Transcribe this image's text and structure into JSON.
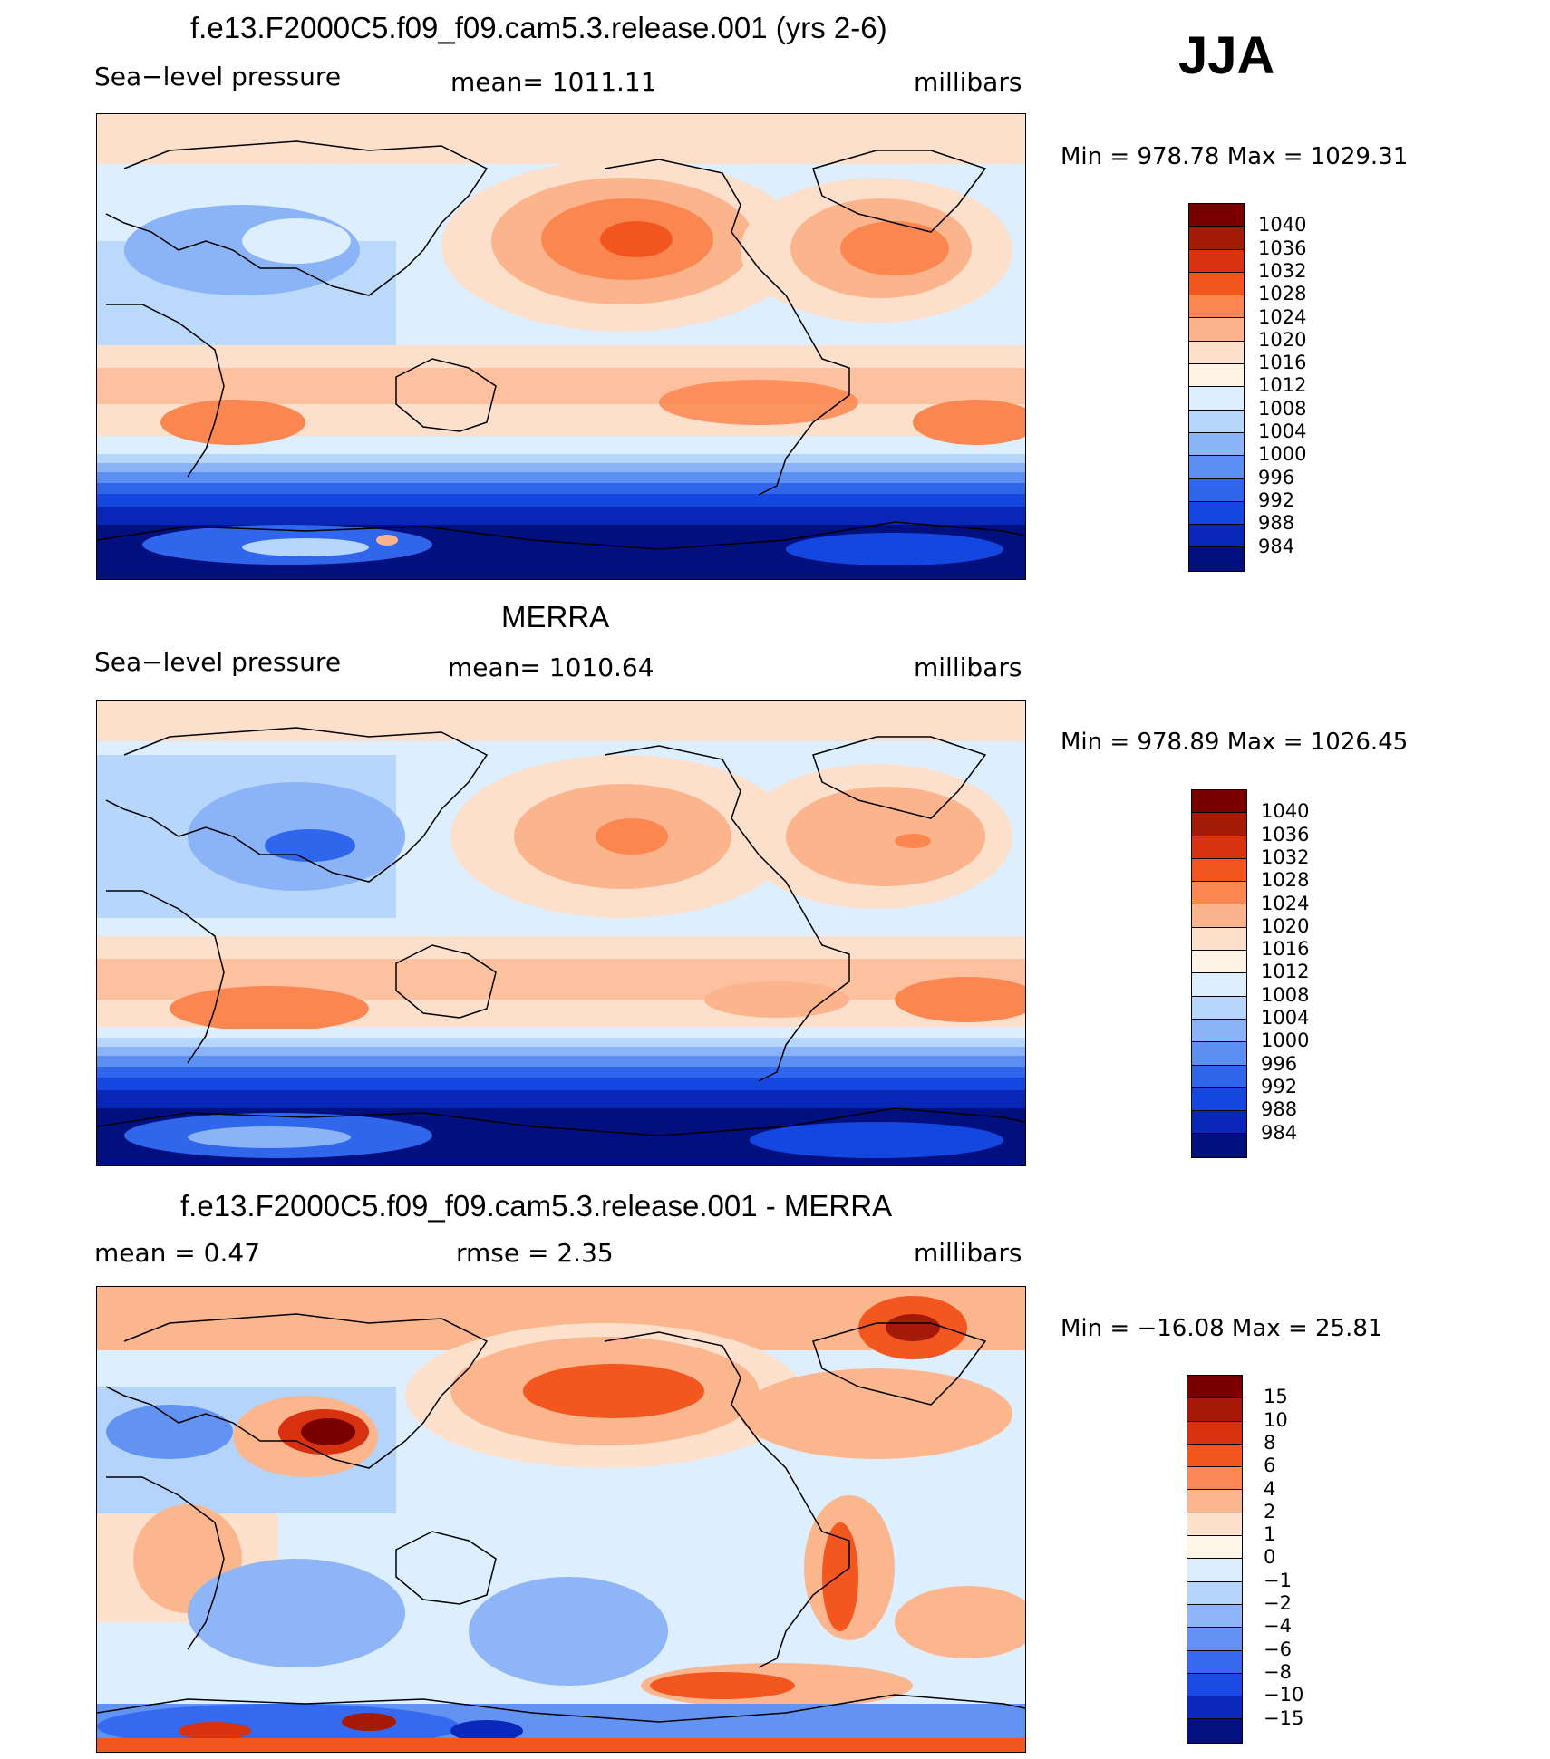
{
  "season": "JJA",
  "palette_abs": [
    "#7a0000",
    "#a31a06",
    "#d93210",
    "#f2561e",
    "#fb8650",
    "#fcb48c",
    "#fde0cb",
    "#fff3e6",
    "#ddeefe",
    "#b7d6fb",
    "#8ab4f7",
    "#5b8ff2",
    "#2f66ec",
    "#1447e0",
    "#0826b8",
    "#01107e"
  ],
  "palette_diff": [
    "#7a0000",
    "#a51a06",
    "#d83110",
    "#f3571f",
    "#fb8856",
    "#fcb68e",
    "#fde1cc",
    "#fff4e8",
    "#dbedfd",
    "#b4d4fb",
    "#8db5f7",
    "#6292f2",
    "#356af0",
    "#1a4ae2",
    "#0a29ba",
    "#02117f"
  ],
  "panels": [
    {
      "title": "f.e13.F2000C5.f09_f09.cam5.3.release.001 (yrs 2-6)",
      "variable": "Sea−level pressure",
      "stat": "mean=  1011.11",
      "units": "millibars",
      "minmax": "Min  =  978.78  Max  =  1029.31",
      "levels": [
        "1040",
        "1036",
        "1032",
        "1028",
        "1024",
        "1020",
        "1016",
        "1012",
        "1008",
        "1004",
        "1000",
        "996",
        "992",
        "988",
        "984"
      ]
    },
    {
      "title": "MERRA",
      "variable": "Sea−level pressure",
      "stat": "mean=  1010.64",
      "units": "millibars",
      "minmax": "Min  =  978.89  Max  =  1026.45",
      "levels": [
        "1040",
        "1036",
        "1032",
        "1028",
        "1024",
        "1020",
        "1016",
        "1012",
        "1008",
        "1004",
        "1000",
        "996",
        "992",
        "988",
        "984"
      ]
    },
    {
      "title": "f.e13.F2000C5.f09_f09.cam5.3.release.001 - MERRA",
      "stat_left": "mean  =     0.47",
      "stat": "rmse  =     2.35",
      "units": "millibars",
      "minmax": "Min  =  −16.08  Max  =     25.81",
      "levels": [
        "15",
        "10",
        "8",
        "6",
        "4",
        "2",
        "1",
        "0",
        "−1",
        "−2",
        "−4",
        "−6",
        "−8",
        "−10",
        "−15"
      ]
    }
  ]
}
